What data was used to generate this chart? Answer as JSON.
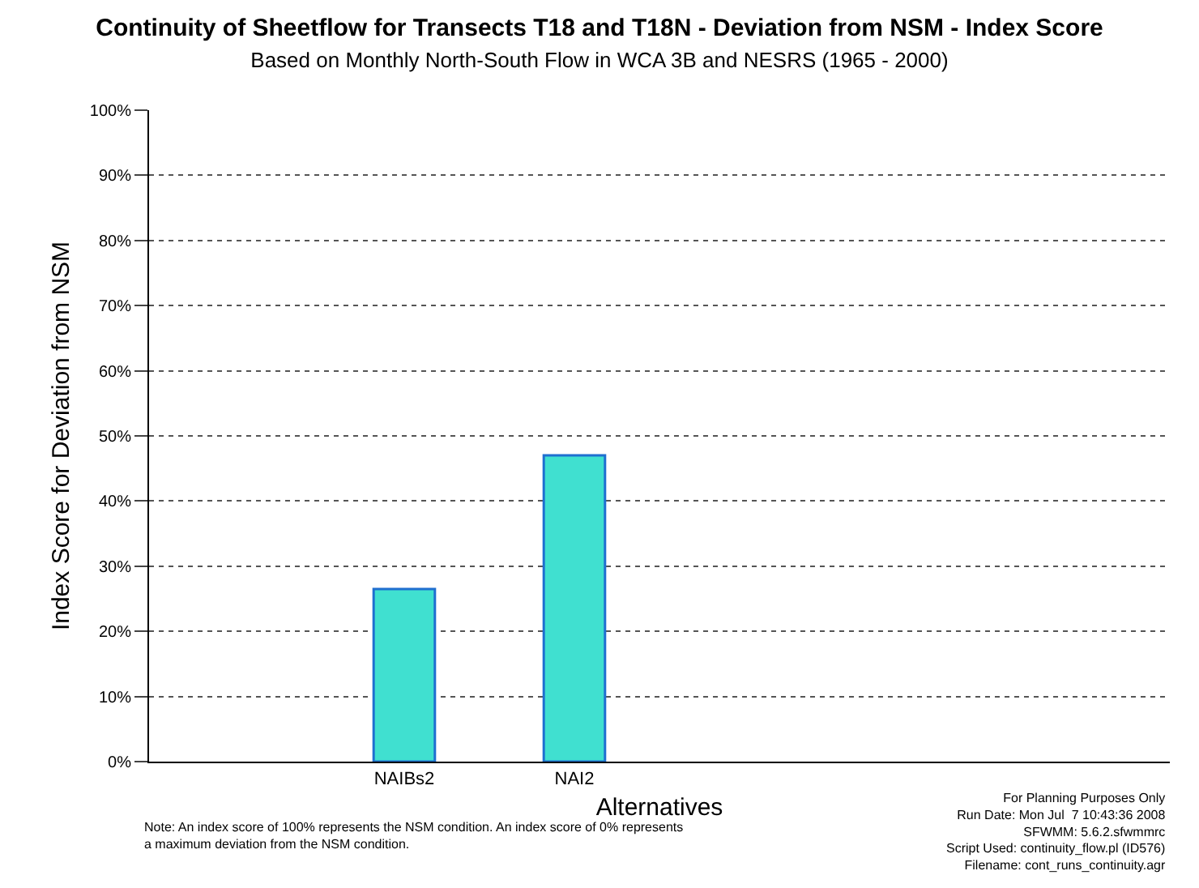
{
  "chart_data": {
    "type": "bar",
    "title": "Continuity of Sheetflow for Transects T18 and T18N - Deviation from NSM - Index Score",
    "subtitle": "Based on Monthly North-South Flow in WCA 3B and NESRS (1965 - 2000)",
    "xlabel": "Alternatives",
    "ylabel": "Index Score for Deviation from NSM",
    "categories": [
      null,
      "NAIBs2",
      "NAI2",
      null,
      null,
      null
    ],
    "values": [
      null,
      26.5,
      47,
      null,
      null,
      null
    ],
    "color": "#40e0d0",
    "ylim": [
      0,
      100
    ],
    "yticks": [
      {
        "value": 0,
        "label": "0%"
      },
      {
        "value": 10,
        "label": "10%"
      },
      {
        "value": 20,
        "label": "20%"
      },
      {
        "value": 30,
        "label": "30%"
      },
      {
        "value": 40,
        "label": "40%"
      },
      {
        "value": 50,
        "label": "50%"
      },
      {
        "value": 60,
        "label": "60%"
      },
      {
        "value": 70,
        "label": "70%"
      },
      {
        "value": 80,
        "label": "80%"
      },
      {
        "value": 90,
        "label": "90%"
      },
      {
        "value": 100,
        "label": "100%"
      }
    ],
    "grid": "y",
    "annotations": [
      "Note: An index score of 100% represents the NSM condition. An index score of 0% represents\na maximum deviation from the NSM condition.",
      "For Planning Purposes Only\nRun Date: Mon Jul  7 10:43:36 2008\nSFWMM: 5.6.2.sfwmmrc\nScript Used: continuity_flow.pl (ID576)\nFilename: cont_runs_continuity.agr"
    ]
  }
}
